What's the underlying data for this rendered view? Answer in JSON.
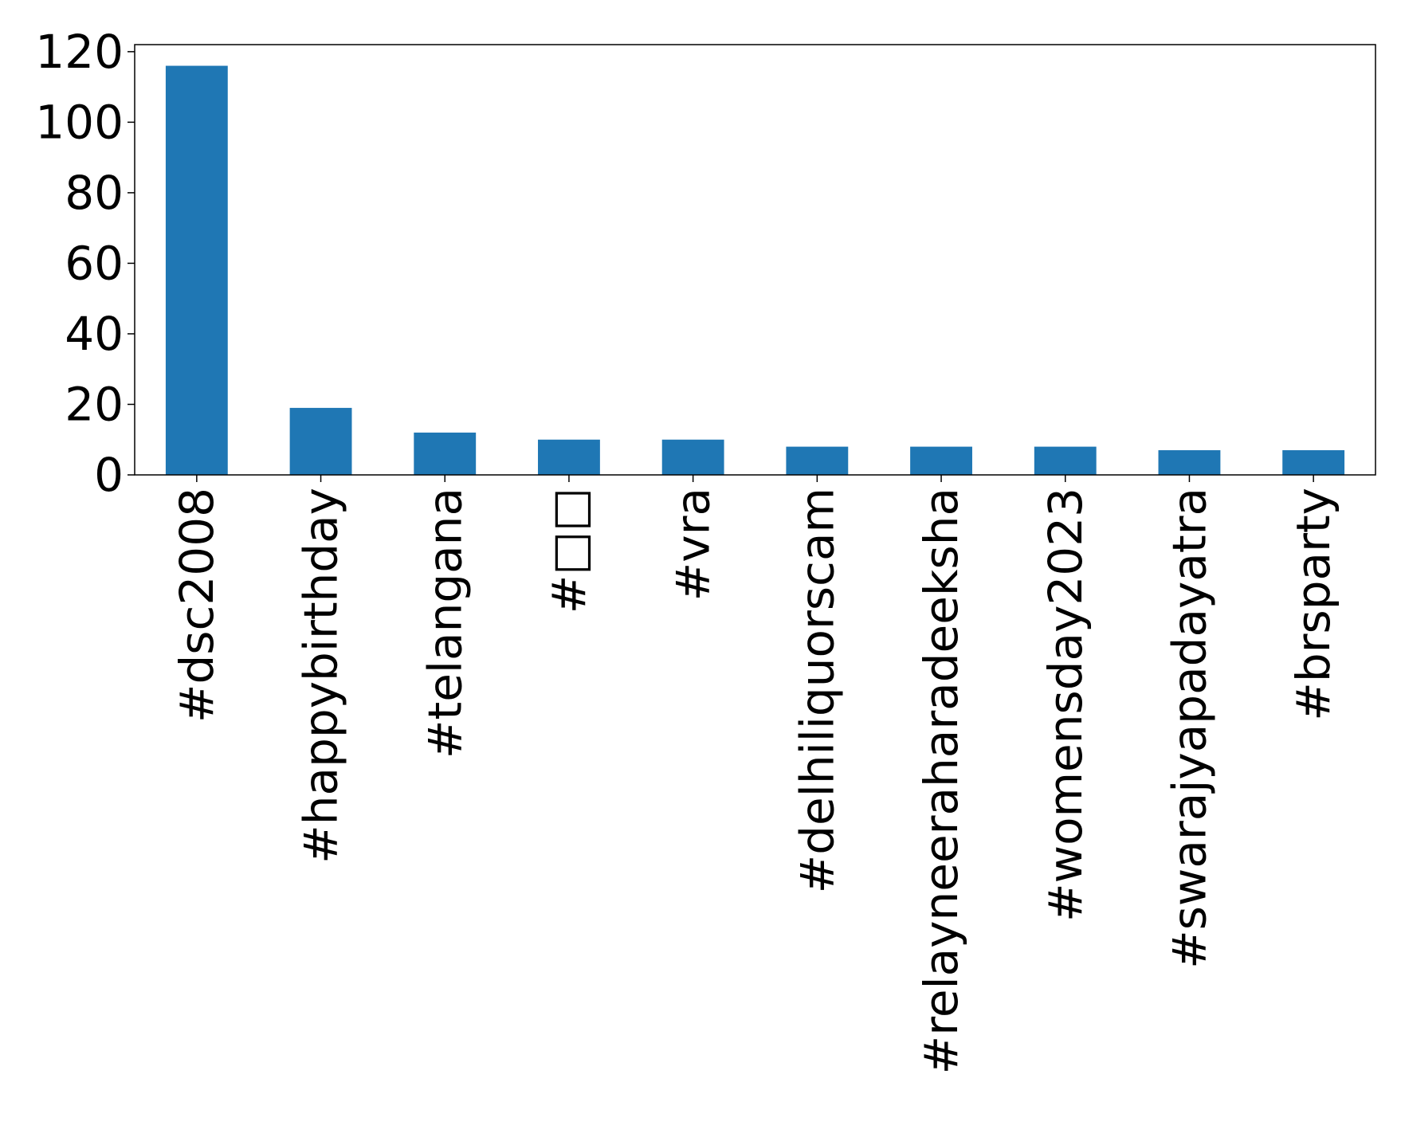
{
  "chart_data": {
    "type": "bar",
    "categories": [
      "#dsc2008",
      "#happybirthday",
      "#telangana",
      "#□□",
      "#vra",
      "#delhiliquorscam",
      "#relayneeraharadeeksha",
      "#womensday2023",
      "#swarajyapadayatra",
      "#brsparty"
    ],
    "values": [
      116,
      19,
      12,
      10,
      10,
      8,
      8,
      8,
      7,
      7
    ],
    "title": "",
    "xlabel": "",
    "ylabel": "",
    "ylim": [
      0,
      122
    ],
    "yticks": [
      0,
      20,
      40,
      60,
      80,
      100,
      120
    ],
    "grid": false,
    "bar_color": "#1f77b4"
  }
}
